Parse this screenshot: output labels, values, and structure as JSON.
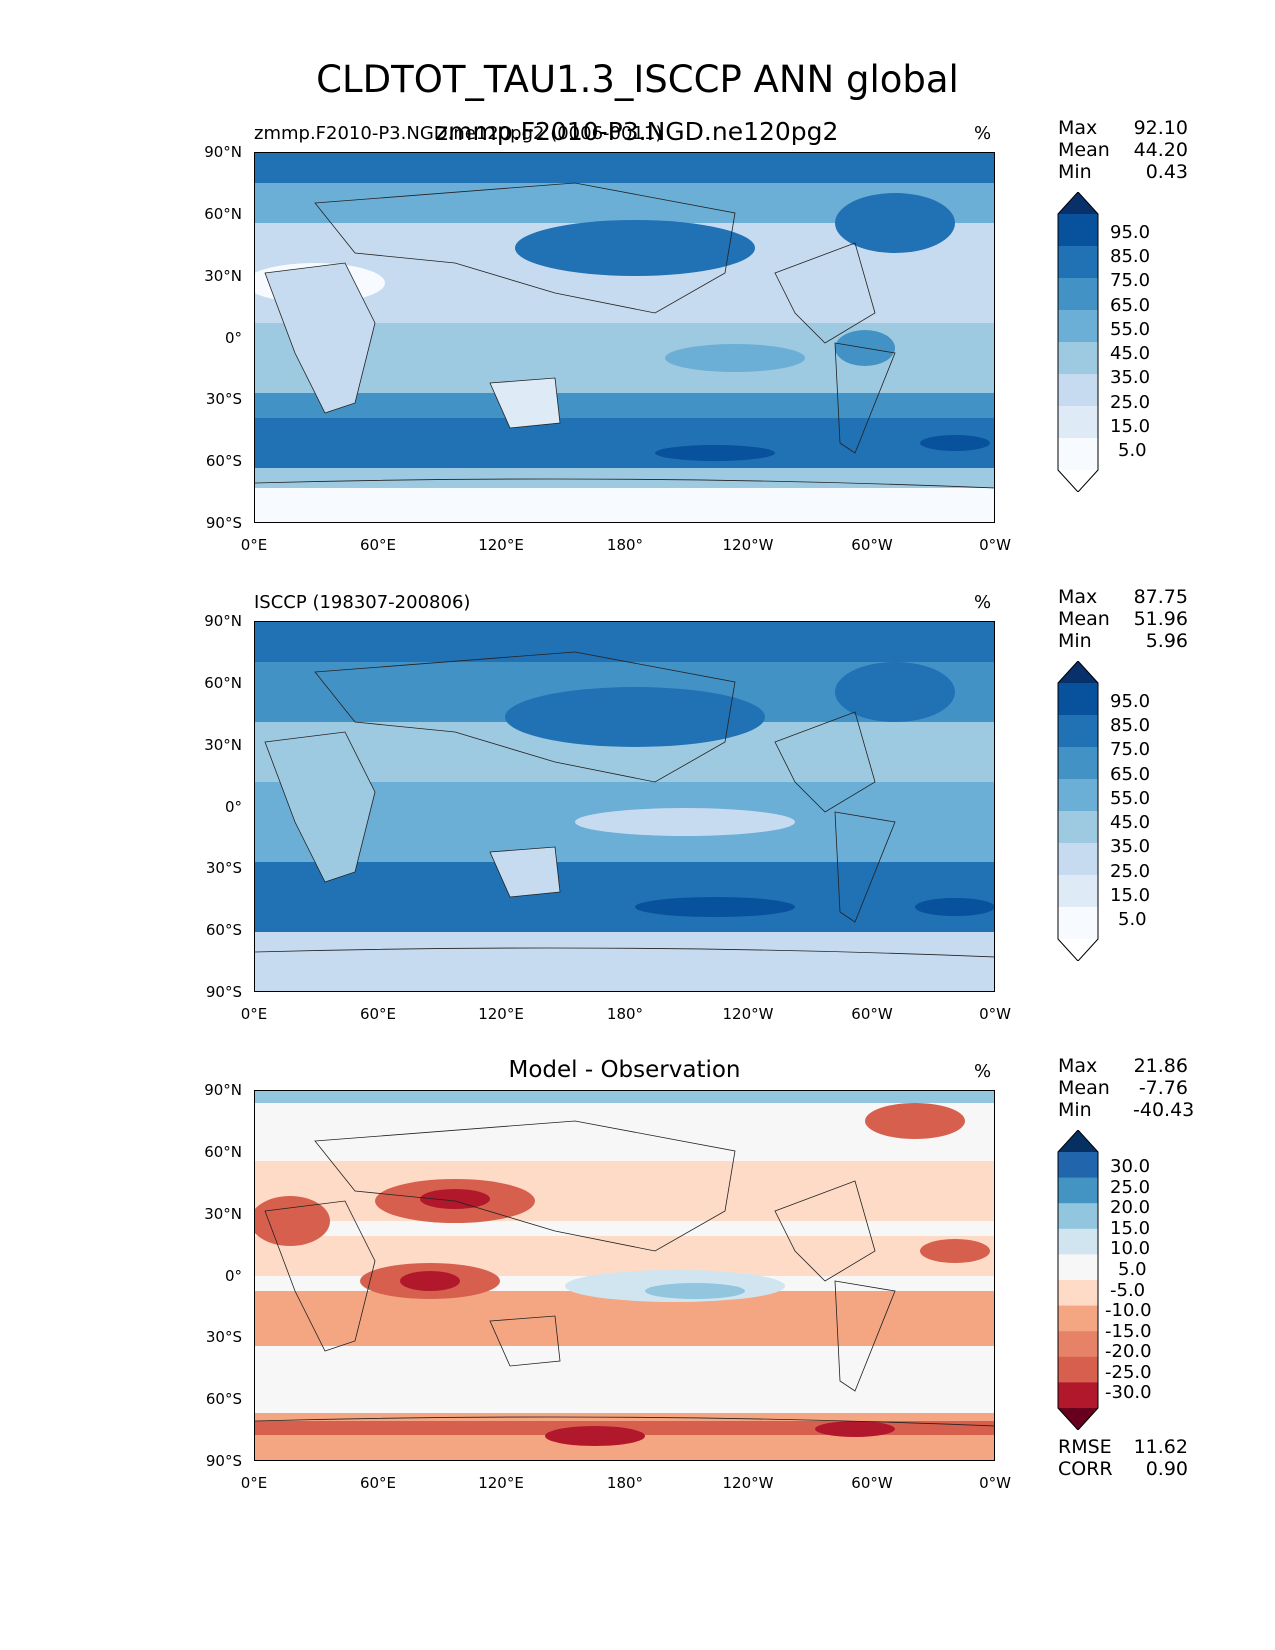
{
  "figure": {
    "title": "CLDTOT_TAU1.3_ISCCP ANN global",
    "overlap_title": "zmmp.F2010-P3.NGD.ne120pg2"
  },
  "panels": [
    {
      "left_title": "zmmp.F2010-P3.NGD.ne120pg2 (0006-0011)",
      "center_title": "",
      "unit": "%",
      "stats": [
        {
          "label": "Max",
          "value": "92.10"
        },
        {
          "label": "Mean",
          "value": "44.20"
        },
        {
          "label": "Min",
          "value": "0.43"
        }
      ],
      "colorbar": {
        "colors": [
          "#ffffff",
          "#f7fbff",
          "#deebf7",
          "#c6dbef",
          "#9ecae1",
          "#6baed6",
          "#4292c6",
          "#2171b5",
          "#08519c",
          "#08306b"
        ],
        "labels": [
          "95.0",
          "85.0",
          "75.0",
          "65.0",
          "55.0",
          "45.0",
          "35.0",
          "25.0",
          "15.0",
          "5.0"
        ]
      },
      "x_ticks": [
        "0°E",
        "60°E",
        "120°E",
        "180°",
        "120°W",
        "60°W",
        "0°W"
      ],
      "y_ticks": [
        "90°N",
        "60°N",
        "30°N",
        "0°",
        "30°S",
        "60°S",
        "90°S"
      ]
    },
    {
      "left_title": "ISCCP (198307-200806)",
      "center_title": "",
      "unit": "%",
      "stats": [
        {
          "label": "Max",
          "value": "87.75"
        },
        {
          "label": "Mean",
          "value": "51.96"
        },
        {
          "label": "Min",
          "value": "5.96"
        }
      ],
      "colorbar": {
        "colors": [
          "#ffffff",
          "#f7fbff",
          "#deebf7",
          "#c6dbef",
          "#9ecae1",
          "#6baed6",
          "#4292c6",
          "#2171b5",
          "#08519c",
          "#08306b"
        ],
        "labels": [
          "95.0",
          "85.0",
          "75.0",
          "65.0",
          "55.0",
          "45.0",
          "35.0",
          "25.0",
          "15.0",
          "5.0"
        ]
      },
      "x_ticks": [
        "0°E",
        "60°E",
        "120°E",
        "180°",
        "120°W",
        "60°W",
        "0°W"
      ],
      "y_ticks": [
        "90°N",
        "60°N",
        "30°N",
        "0°",
        "30°S",
        "60°S",
        "90°S"
      ]
    },
    {
      "left_title": "",
      "center_title": "Model - Observation",
      "unit": "%",
      "stats": [
        {
          "label": "Max",
          "value": "21.86"
        },
        {
          "label": "Mean",
          "value": "-7.76"
        },
        {
          "label": "Min",
          "value": "-40.43"
        }
      ],
      "bottom_stats": [
        {
          "label": "RMSE",
          "value": "11.62"
        },
        {
          "label": "CORR",
          "value": "0.90"
        }
      ],
      "colorbar": {
        "colors": [
          "#67001f",
          "#b2182b",
          "#d6604d",
          "#e58267",
          "#f4a582",
          "#fddbc7",
          "#f7f7f7",
          "#d1e5f0",
          "#92c5de",
          "#4393c3",
          "#2166ac",
          "#053061"
        ],
        "labels": [
          "30.0",
          "25.0",
          "20.0",
          "15.0",
          "10.0",
          "5.0",
          "-5.0",
          "-10.0",
          "-15.0",
          "-20.0",
          "-25.0",
          "-30.0"
        ]
      },
      "x_ticks": [
        "0°E",
        "60°E",
        "120°E",
        "180°",
        "120°W",
        "60°W",
        "0°W"
      ],
      "y_ticks": [
        "90°N",
        "60°N",
        "30°N",
        "0°",
        "30°S",
        "60°S",
        "90°S"
      ]
    }
  ]
}
